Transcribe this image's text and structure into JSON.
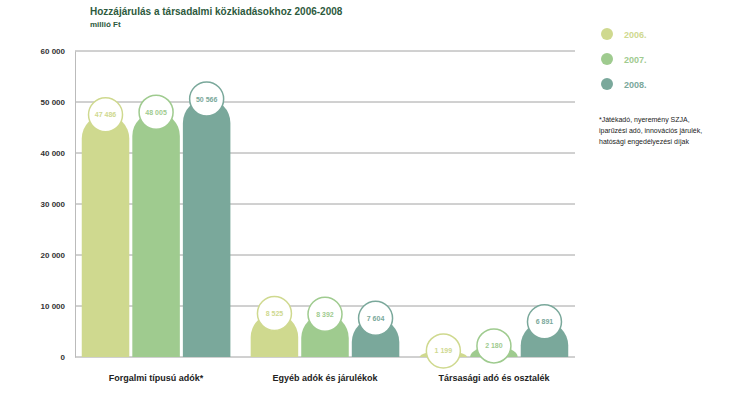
{
  "chart_data": {
    "type": "bar",
    "title": "Hozzájárulás a társadalmi közkiadásokhoz 2006-2008",
    "subtitle": "millió Ft",
    "categories": [
      "Forgalmi típusú adók*",
      "Egyéb adók és járulékok",
      "Társasági adó és osztalék"
    ],
    "series": [
      {
        "name": "2006.",
        "color": "#cfd98f",
        "values": [
          47486,
          8525,
          1199
        ],
        "value_labels": [
          "47 486",
          "8 525",
          "1 199"
        ]
      },
      {
        "name": "2007.",
        "color": "#9fcb8f",
        "values": [
          48005,
          8392,
          2180
        ],
        "value_labels": [
          "48 005",
          "8 392",
          "2 180"
        ]
      },
      {
        "name": "2008.",
        "color": "#7aa89b",
        "values": [
          50566,
          7604,
          6891
        ],
        "value_labels": [
          "50 566",
          "7 604",
          "6 891"
        ]
      }
    ],
    "ylim": [
      0,
      60000
    ],
    "yticks": [
      0,
      {
        "value": 10000,
        "label": "10 000"
      },
      {
        "value": 20000,
        "label": "20 000"
      },
      {
        "value": 30000,
        "label": "30 000"
      },
      {
        "value": 40000,
        "label": "40 000"
      },
      {
        "value": 50000,
        "label": "50 000"
      },
      {
        "value": 60000,
        "label": "60 000"
      }
    ],
    "grid": true,
    "legend": "top-right",
    "data_labels": true,
    "annotations": [
      "*Játékadó, nyeremény SZJA,",
      "iparűzési adó, innovációs járulék,",
      "hatósági engedélyezési díjak"
    ]
  }
}
